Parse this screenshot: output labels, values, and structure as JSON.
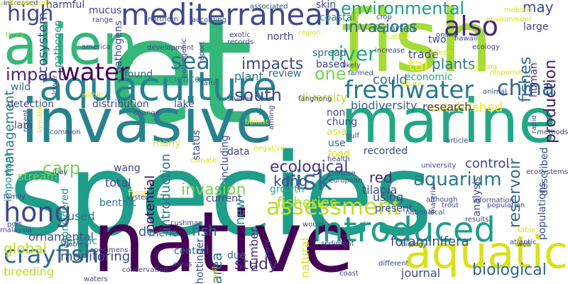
{
  "words": [
    {
      "text": "species",
      "color": "#1f9e89"
    },
    {
      "text": "et",
      "color": "#35b779"
    },
    {
      "text": "native",
      "color": "#440154"
    },
    {
      "text": "fish",
      "color": "#a5db36"
    },
    {
      "text": "invasive",
      "color": "#26828e"
    },
    {
      "text": "marine",
      "color": "#22a884"
    },
    {
      "text": "alien",
      "color": "#35b779"
    },
    {
      "text": "aquatic",
      "color": "#d8e219"
    },
    {
      "text": "aquaculture",
      "color": "#26828e"
    },
    {
      "text": "mediterranean",
      "color": "#3e4989"
    },
    {
      "text": "introduced",
      "color": "#1f9e89"
    },
    {
      "text": "freshwater",
      "color": "#2a788e"
    },
    {
      "text": "also",
      "color": "#482878"
    },
    {
      "text": "water",
      "color": "#440154"
    },
    {
      "text": "sea",
      "color": "#2a788e"
    },
    {
      "text": "assessment",
      "color": "#bddf26"
    },
    {
      "text": "china",
      "color": "#31688e"
    },
    {
      "text": "hong",
      "color": "#3e4989"
    },
    {
      "text": "crayfish",
      "color": "#31688e"
    },
    {
      "text": "risk",
      "color": "#31688e"
    },
    {
      "text": "ecological",
      "color": "#443983"
    },
    {
      "text": "kong",
      "color": "#3e4989"
    },
    {
      "text": "river",
      "color": "#22a884"
    },
    {
      "text": "impacts",
      "color": "#3e4989"
    },
    {
      "text": "environmental",
      "color": "#1f9e89"
    },
    {
      "text": "invasions",
      "color": "#31688e"
    },
    {
      "text": "study",
      "color": "#46327e"
    },
    {
      "text": "fishes",
      "color": "#31688e"
    },
    {
      "text": "aquarium",
      "color": "#2a788e"
    },
    {
      "text": "biological",
      "color": "#31688e"
    },
    {
      "text": "invasion",
      "color": "#7ad151"
    },
    {
      "text": "south",
      "color": "#3e4989"
    },
    {
      "text": "reservoir",
      "color": "#31688e"
    },
    {
      "text": "production",
      "color": "#481f70"
    },
    {
      "text": "red",
      "color": "#482878"
    },
    {
      "text": "tilapia",
      "color": "#3e4989"
    },
    {
      "text": "carp",
      "color": "#7ad151"
    },
    {
      "text": "global",
      "color": "#bddf26"
    },
    {
      "text": "one",
      "color": "#7ad151"
    },
    {
      "text": "plants",
      "color": "#2a788e"
    },
    {
      "text": "tai",
      "color": "#fde725"
    },
    {
      "text": "impact",
      "color": "#482878"
    },
    {
      "text": "foraminifera",
      "color": "#3e4989"
    },
    {
      "text": "management",
      "color": "#2a788e"
    },
    {
      "text": "potential",
      "color": "#440154"
    },
    {
      "text": "area",
      "color": "#2a788e"
    },
    {
      "text": "may",
      "color": "#3e4989"
    },
    {
      "text": "high",
      "color": "#3e4989"
    },
    {
      "text": "de",
      "color": "#31688e"
    },
    {
      "text": "fish",
      "color": "#31688e"
    },
    {
      "text": "new",
      "color": "#21918c"
    },
    {
      "text": "introduction",
      "color": "#2a788e"
    },
    {
      "text": "number",
      "color": "#482878"
    },
    {
      "text": "control",
      "color": "#3e4989"
    },
    {
      "text": "fisheries",
      "color": "#b5de2b"
    },
    {
      "text": "ecosystem",
      "color": "#3e4989"
    },
    {
      "text": "established",
      "color": "#fde725"
    },
    {
      "text": "stream",
      "color": "#7ad151"
    },
    {
      "text": "biodiversity",
      "color": "#31688e"
    },
    {
      "text": "research",
      "color": "#443983"
    },
    {
      "text": "diversity",
      "color": "#bddf26"
    },
    {
      "text": "could",
      "color": "#31688e"
    },
    {
      "text": "plant",
      "color": "#2a788e"
    },
    {
      "text": "human",
      "color": "#482878"
    },
    {
      "text": "using",
      "color": "#3e4989"
    },
    {
      "text": "economic",
      "color": "#22a884"
    },
    {
      "text": "trade",
      "color": "#3e4989"
    },
    {
      "text": "ornamental",
      "color": "#3e4989"
    },
    {
      "text": "monitoring",
      "color": "#3e4989"
    },
    {
      "text": "breeding",
      "color": "#bddf26"
    },
    {
      "text": "current",
      "color": "#3e4989"
    },
    {
      "text": "used",
      "color": "#2a788e"
    },
    {
      "text": "total",
      "color": "#3e4989"
    },
    {
      "text": "wang",
      "color": "#3e4989"
    },
    {
      "text": "growth",
      "color": "#22a884"
    },
    {
      "text": "present",
      "color": "#3e4989"
    },
    {
      "text": "central",
      "color": "#31688e"
    },
    {
      "text": "meric",
      "color": "#31688e"
    },
    {
      "text": "first",
      "color": "#fde725"
    },
    {
      "text": "genetic",
      "color": "#21918c"
    },
    {
      "text": "hottinger",
      "color": "#3e4989"
    },
    {
      "text": "journal",
      "color": "#3e4989"
    },
    {
      "text": "benthic",
      "color": "#2a788e"
    },
    {
      "text": "natural",
      "color": "#d8e219"
    },
    {
      "text": "due",
      "color": "#31688e"
    },
    {
      "text": "science",
      "color": "#21918c"
    },
    {
      "text": "lake",
      "color": "#3e4989"
    },
    {
      "text": "found",
      "color": "#31688e"
    },
    {
      "text": "distribution",
      "color": "#3e4989"
    },
    {
      "text": "detection",
      "color": "#3e4989"
    },
    {
      "text": "review",
      "color": "#31688e"
    },
    {
      "text": "based",
      "color": "#3e4989"
    },
    {
      "text": "two",
      "color": "#3e4989"
    },
    {
      "text": "spread",
      "color": "#31688e"
    },
    {
      "text": "reported",
      "color": "#2a788e"
    },
    {
      "text": "north",
      "color": "#3e4989"
    },
    {
      "text": "coastal",
      "color": "#21918c"
    },
    {
      "text": "skin",
      "color": "#3e4989"
    },
    {
      "text": "harmful",
      "color": "#3e4989"
    },
    {
      "text": "mucus",
      "color": "#3e4989"
    },
    {
      "text": "pathogen",
      "color": "#21918c"
    },
    {
      "text": "pathogens",
      "color": "#3e4989"
    },
    {
      "text": "large",
      "color": "#3e4989"
    },
    {
      "text": "lam",
      "color": "#3e4989"
    },
    {
      "text": "wild",
      "color": "#31688e"
    },
    {
      "text": "important",
      "color": "#21918c"
    },
    {
      "text": "considered",
      "color": "#21918c"
    },
    {
      "text": "including",
      "color": "#3e4989"
    },
    {
      "text": "status",
      "color": "#3e4989"
    },
    {
      "text": "data",
      "color": "#3e4989"
    },
    {
      "text": "asia",
      "color": "#d8e219"
    },
    {
      "text": "chung",
      "color": "#3e4989"
    },
    {
      "text": "non",
      "color": "#3e4989"
    },
    {
      "text": "described",
      "color": "#3e4989"
    },
    {
      "text": "food",
      "color": "#d8e219"
    },
    {
      "text": "recorded",
      "color": "#3e4989"
    },
    {
      "text": "analysis",
      "color": "#3e4989"
    },
    {
      "text": "populations",
      "color": "#3e4989"
    },
    {
      "text": "many",
      "color": "#d8e219"
    },
    {
      "text": "j",
      "color": "#31688e"
    },
    {
      "text": "use",
      "color": "#31688e"
    },
    {
      "text": "increased",
      "color": "#3e4989"
    },
    {
      "text": "three",
      "color": "#7ad151"
    },
    {
      "text": "lower",
      "color": "#3e4989"
    },
    {
      "text": "america",
      "color": "#3e4989"
    },
    {
      "text": "range",
      "color": "#3e4989"
    },
    {
      "text": "northern",
      "color": "#3e4989"
    },
    {
      "text": "development",
      "color": "#3e4989"
    },
    {
      "text": "according",
      "color": "#3e4989"
    },
    {
      "text": "pathogenic",
      "color": "#3e4989"
    },
    {
      "text": "report",
      "color": "#3e4989"
    },
    {
      "text": "exotic",
      "color": "#3e4989"
    },
    {
      "text": "records",
      "color": "#3e4989"
    },
    {
      "text": "region",
      "color": "#d8e219"
    },
    {
      "text": "catfish",
      "color": "#d8e219"
    },
    {
      "text": "online",
      "color": "#3e4989"
    },
    {
      "text": "effects",
      "color": "#d8e219"
    },
    {
      "text": "environment",
      "color": "#d8e219"
    },
    {
      "text": "ecology",
      "color": "#3e4989"
    },
    {
      "text": "increase",
      "color": "#3e4989"
    },
    {
      "text": "likely",
      "color": "#3e4989"
    },
    {
      "text": "farmed",
      "color": "#3e4989"
    },
    {
      "text": "figure",
      "color": "#d8e219"
    },
    {
      "text": "response",
      "color": "#d8e219"
    },
    {
      "text": "animal",
      "color": "#3e4989"
    },
    {
      "text": "rapid",
      "color": "#3e4989"
    },
    {
      "text": "methods",
      "color": "#3e4989"
    },
    {
      "text": "tam",
      "color": "#3e4989"
    },
    {
      "text": "studies",
      "color": "#3e4989"
    },
    {
      "text": "change",
      "color": "#3e4989"
    },
    {
      "text": "among",
      "color": "#3e4989"
    },
    {
      "text": "ballast",
      "color": "#d8e219"
    },
    {
      "text": "gulf",
      "color": "#3e4989"
    },
    {
      "text": "health",
      "color": "#3e4989"
    },
    {
      "text": "article",
      "color": "#3e4989"
    },
    {
      "text": "negative",
      "color": "#d8e219"
    },
    {
      "text": "li",
      "color": "#3e4989"
    },
    {
      "text": "climate",
      "color": "#d8e219"
    },
    {
      "text": "common",
      "color": "#3e4989"
    },
    {
      "text": "bay",
      "color": "#3e4989"
    },
    {
      "text": "system",
      "color": "#3e4989"
    },
    {
      "text": "family",
      "color": "#3e4989"
    },
    {
      "text": "port",
      "color": "#3e4989"
    },
    {
      "text": "malaysia",
      "color": "#3e4989"
    },
    {
      "text": "specimens",
      "color": "#3e4989"
    },
    {
      "text": "waters",
      "color": "#3e4989"
    },
    {
      "text": "conservation",
      "color": "#3e4989"
    },
    {
      "text": "areas",
      "color": "#3e4989"
    },
    {
      "text": "east",
      "color": "#d8e219"
    },
    {
      "text": "early",
      "color": "#3e4989"
    },
    {
      "text": "sediment",
      "color": "#3e4989"
    },
    {
      "text": "would",
      "color": "#3e4989"
    },
    {
      "text": "european",
      "color": "#3e4989"
    },
    {
      "text": "chinese",
      "color": "#3e4989"
    },
    {
      "text": "associated",
      "color": "#3e4989"
    },
    {
      "text": "university",
      "color": "#3e4989"
    },
    {
      "text": "material",
      "color": "#3e4989"
    },
    {
      "text": "although",
      "color": "#3e4989"
    },
    {
      "text": "local",
      "color": "#3e4989"
    },
    {
      "text": "trout",
      "color": "#3e4989"
    },
    {
      "text": "national",
      "color": "#3e4989"
    },
    {
      "text": "results",
      "color": "#3e4989"
    },
    {
      "text": "information",
      "color": "#3e4989"
    },
    {
      "text": "population",
      "color": "#3e4989"
    },
    {
      "text": "table",
      "color": "#d8e219"
    },
    {
      "text": "ecosystems",
      "color": "#3e4989"
    },
    {
      "text": "well",
      "color": "#3e4989"
    },
    {
      "text": "atlantic",
      "color": "#3e4989"
    },
    {
      "text": "biology",
      "color": "#3e4989"
    },
    {
      "text": "different",
      "color": "#3e4989"
    },
    {
      "text": "coast",
      "color": "#3e4989"
    },
    {
      "text": "cushman",
      "color": "#3e4989"
    },
    {
      "text": "recent",
      "color": "#3e4989"
    },
    {
      "text": "lancang",
      "color": "#d8e219"
    },
    {
      "text": "within",
      "color": "#d8e219"
    },
    {
      "text": "gobies",
      "color": "#3e4989"
    },
    {
      "text": "growing",
      "color": "#d8e219"
    },
    {
      "text": "hawaii",
      "color": "#3e4989"
    },
    {
      "text": "mekong",
      "color": "#d8e219"
    },
    {
      "text": "crop",
      "color": "#3e4989"
    },
    {
      "text": "fanghong",
      "color": "#3e4989"
    },
    {
      "text": "anthropogenic",
      "color": "#d8e219"
    }
  ]
}
